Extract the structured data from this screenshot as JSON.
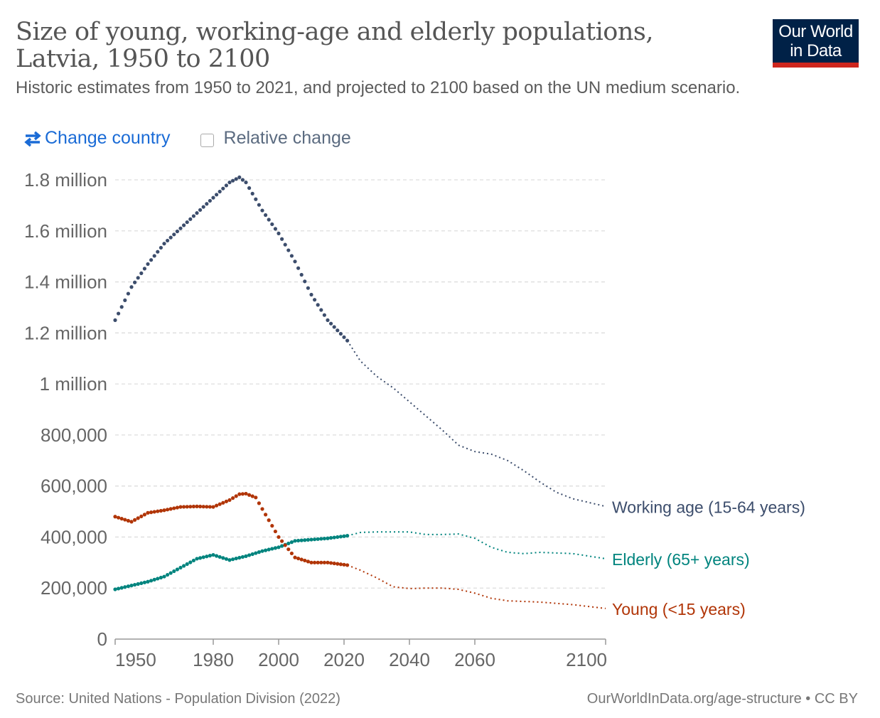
{
  "header": {
    "title": "Size of young, working-age and elderly populations, Latvia, 1950 to 2100",
    "subtitle": "Historic estimates from 1950 to 2021, and projected to 2100 based on the UN medium scenario.",
    "logo_line1": "Our World",
    "logo_line2": "in Data"
  },
  "controls": {
    "change_country": "Change country",
    "relative_change": "Relative change",
    "relative_checked": false
  },
  "footer": {
    "source": "Source: United Nations - Population Division (2022)",
    "link": "OurWorldInData.org/age-structure • CC BY"
  },
  "colors": {
    "working": "#3c4d6c",
    "elderly": "#00847e",
    "young": "#b13507",
    "link": "#1a6bd6",
    "grid": "#dddddd"
  },
  "chart_data": {
    "type": "line",
    "title": "Size of young, working-age and elderly populations, Latvia, 1950 to 2100",
    "xlabel": "",
    "ylabel": "",
    "xlim": [
      1950,
      2100
    ],
    "ylim": [
      0,
      1800000
    ],
    "historic_until": 2021,
    "x_ticks": [
      {
        "v": 1950,
        "label": "1950"
      },
      {
        "v": 1980,
        "label": "1980"
      },
      {
        "v": 2000,
        "label": "2000"
      },
      {
        "v": 2020,
        "label": "2020"
      },
      {
        "v": 2040,
        "label": "2040"
      },
      {
        "v": 2060,
        "label": "2060"
      },
      {
        "v": 2100,
        "label": "2100"
      }
    ],
    "y_ticks": [
      {
        "v": 0,
        "label": "0"
      },
      {
        "v": 200000,
        "label": "200,000"
      },
      {
        "v": 400000,
        "label": "400,000"
      },
      {
        "v": 600000,
        "label": "600,000"
      },
      {
        "v": 800000,
        "label": "800,000"
      },
      {
        "v": 1000000,
        "label": "1 million"
      },
      {
        "v": 1200000,
        "label": "1.2 million"
      },
      {
        "v": 1400000,
        "label": "1.4 million"
      },
      {
        "v": 1600000,
        "label": "1.6 million"
      },
      {
        "v": 1800000,
        "label": "1.8 million"
      }
    ],
    "grid": true,
    "legend": "right-inline",
    "series": [
      {
        "key": "working",
        "name": "Working age (15-64 years)",
        "color": "#3c4d6c",
        "x": [
          1950,
          1955,
          1960,
          1965,
          1970,
          1975,
          1980,
          1985,
          1988,
          1990,
          1995,
          2000,
          2005,
          2010,
          2015,
          2021,
          2025,
          2030,
          2035,
          2040,
          2045,
          2050,
          2055,
          2060,
          2065,
          2070,
          2075,
          2080,
          2085,
          2090,
          2095,
          2100
        ],
        "y": [
          1250000,
          1380000,
          1470000,
          1550000,
          1610000,
          1670000,
          1730000,
          1790000,
          1810000,
          1790000,
          1680000,
          1590000,
          1480000,
          1350000,
          1250000,
          1170000,
          1090000,
          1030000,
          985000,
          930000,
          875000,
          820000,
          760000,
          735000,
          725000,
          700000,
          660000,
          615000,
          575000,
          550000,
          535000,
          520000
        ]
      },
      {
        "key": "elderly",
        "name": "Elderly (65+ years)",
        "color": "#00847e",
        "x": [
          1950,
          1955,
          1960,
          1965,
          1970,
          1975,
          1980,
          1985,
          1990,
          1995,
          2000,
          2005,
          2010,
          2015,
          2021,
          2025,
          2030,
          2035,
          2040,
          2045,
          2050,
          2055,
          2060,
          2065,
          2070,
          2075,
          2080,
          2090,
          2100
        ],
        "y": [
          195000,
          210000,
          225000,
          245000,
          280000,
          315000,
          330000,
          310000,
          325000,
          345000,
          360000,
          385000,
          390000,
          395000,
          405000,
          418000,
          420000,
          420000,
          420000,
          410000,
          410000,
          412000,
          395000,
          360000,
          340000,
          335000,
          340000,
          335000,
          315000
        ]
      },
      {
        "key": "young",
        "name": "Young (<15 years)",
        "color": "#b13507",
        "x": [
          1950,
          1955,
          1960,
          1965,
          1970,
          1975,
          1980,
          1985,
          1988,
          1990,
          1993,
          1995,
          2000,
          2005,
          2010,
          2015,
          2021,
          2025,
          2030,
          2035,
          2040,
          2045,
          2050,
          2055,
          2060,
          2065,
          2070,
          2080,
          2090,
          2100
        ],
        "y": [
          480000,
          460000,
          495000,
          505000,
          518000,
          520000,
          518000,
          545000,
          568000,
          570000,
          555000,
          510000,
          400000,
          320000,
          300000,
          300000,
          290000,
          270000,
          240000,
          205000,
          198000,
          200000,
          200000,
          195000,
          180000,
          160000,
          150000,
          145000,
          135000,
          120000
        ]
      }
    ]
  }
}
